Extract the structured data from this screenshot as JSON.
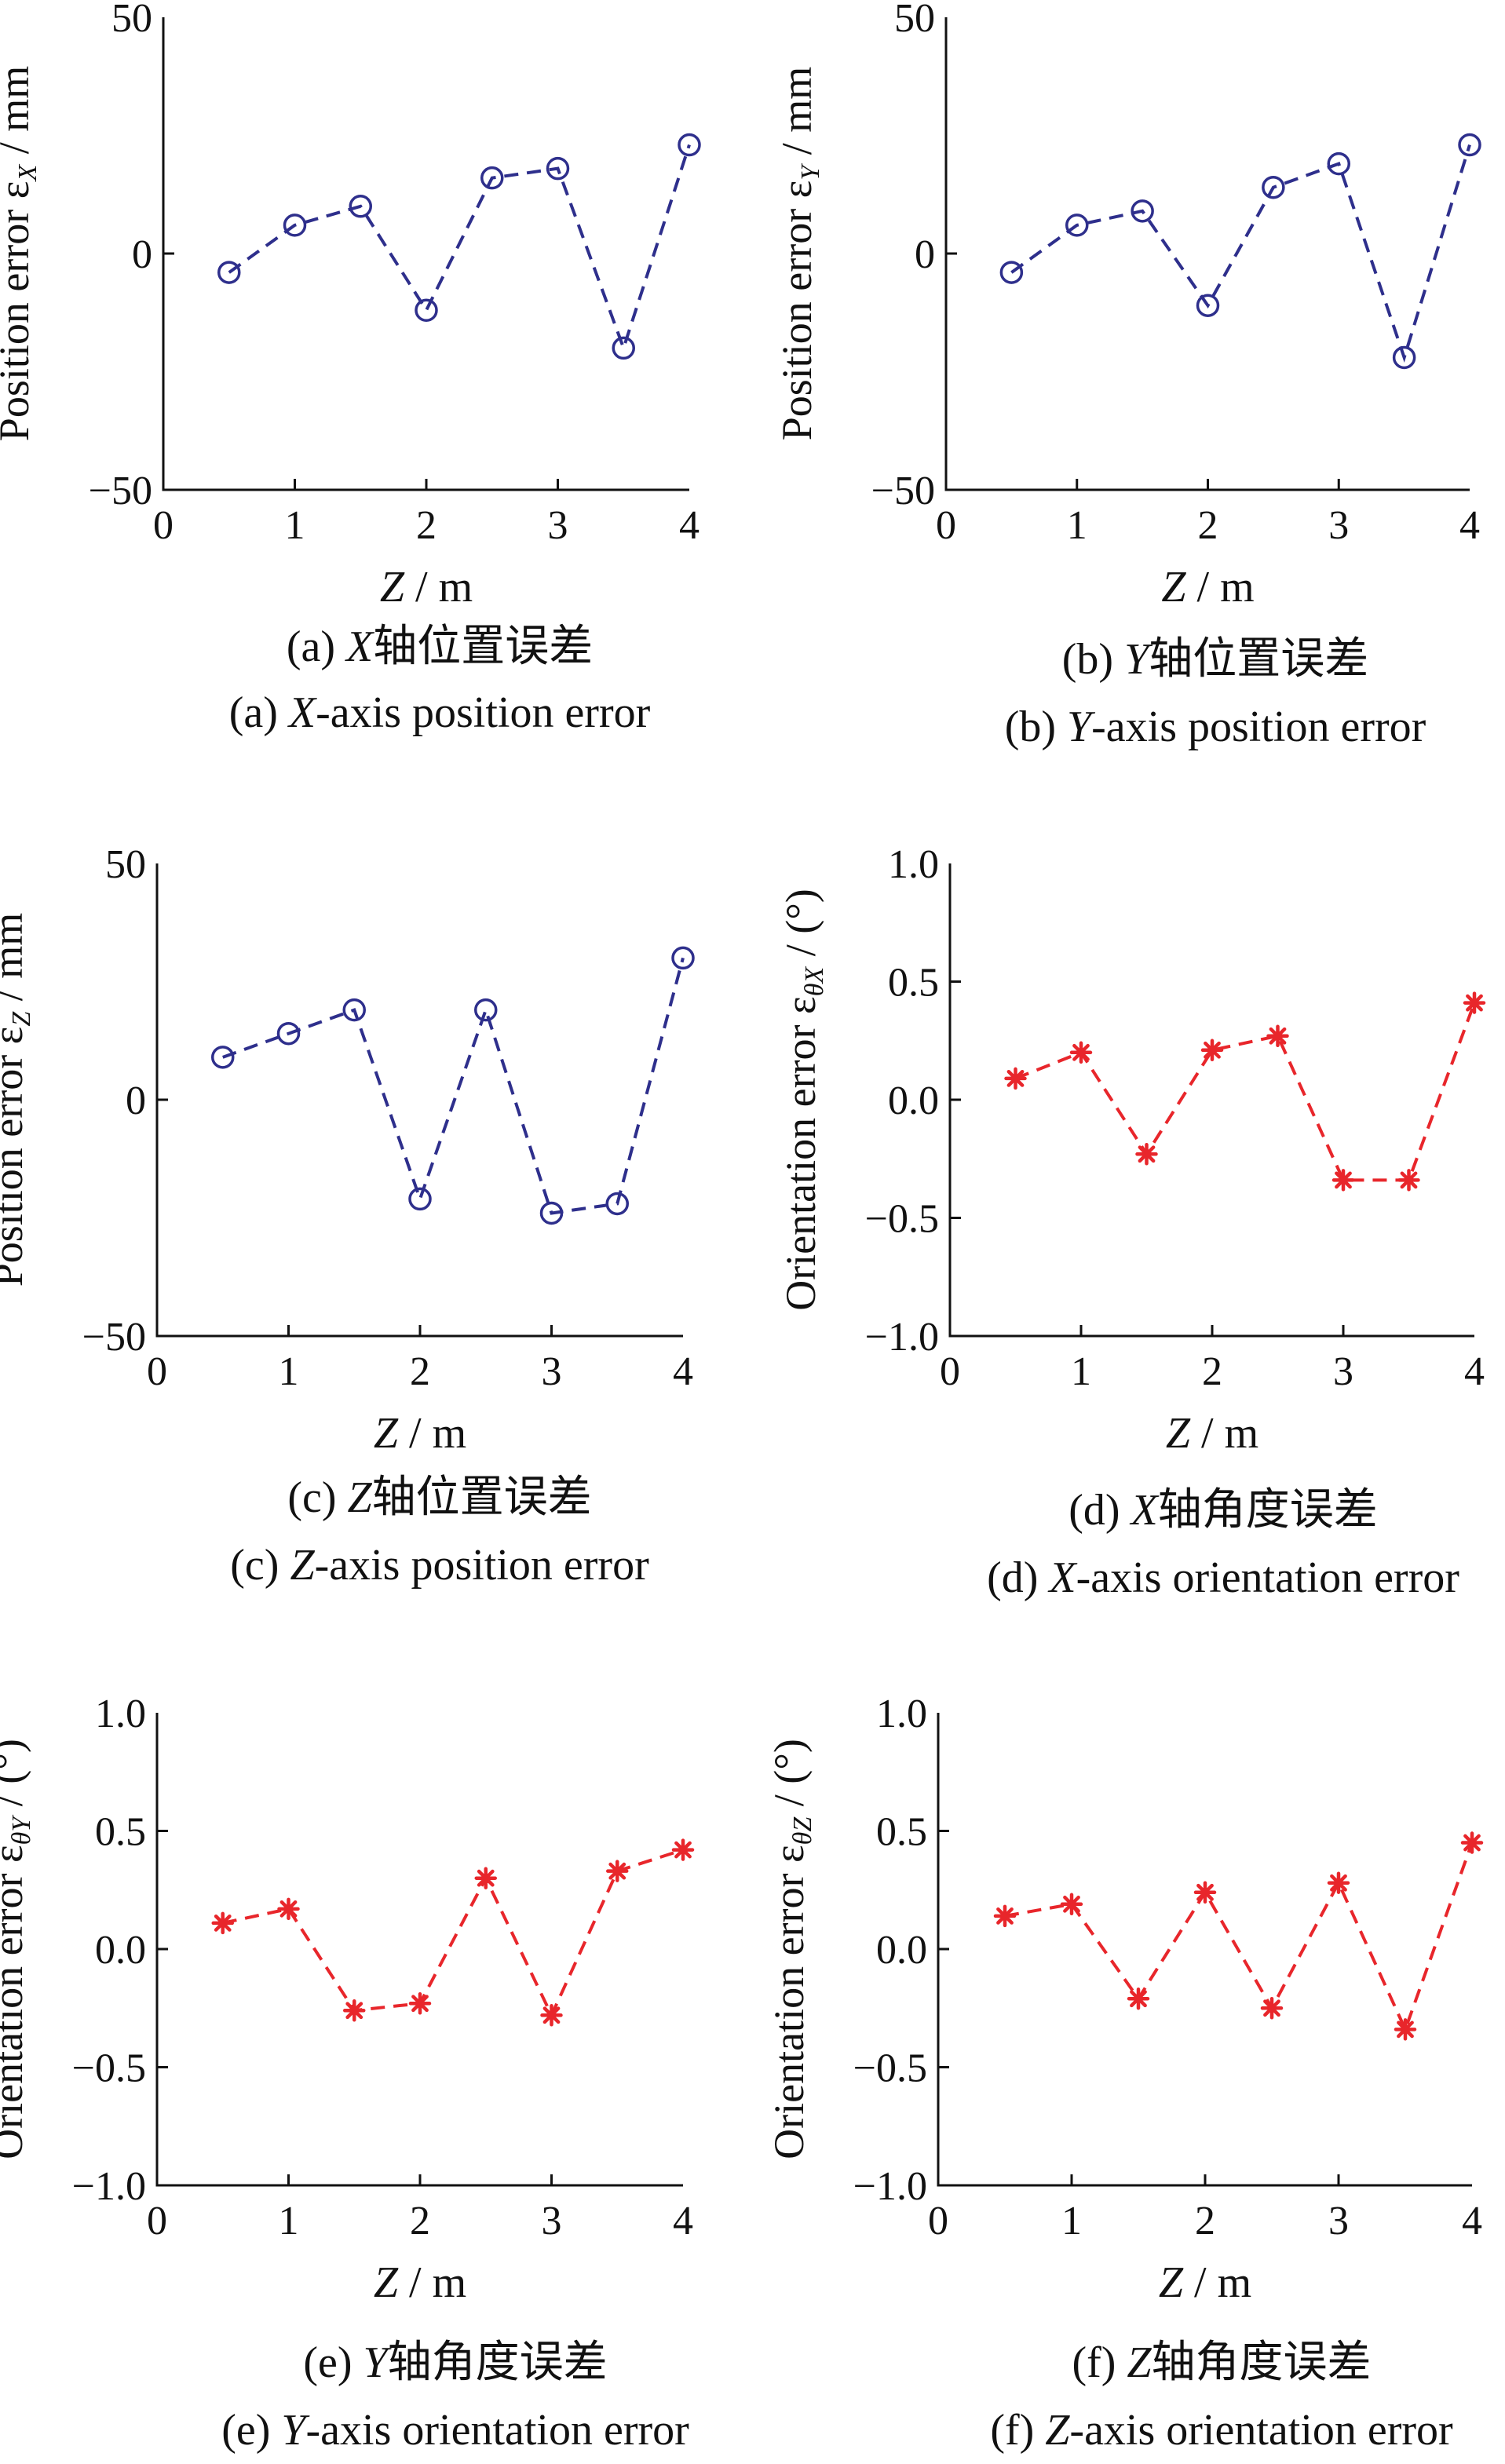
{
  "chart_data": [
    {
      "type": "line",
      "panel": "a",
      "x": [
        0.5,
        1.0,
        1.5,
        2.0,
        2.5,
        3.0,
        3.5,
        4.0
      ],
      "series": [
        {
          "values": [
            -4,
            6,
            10,
            -12,
            16,
            18,
            -20,
            23
          ],
          "color": "#2e2f8c",
          "marker": "circle",
          "line": "dashed"
        }
      ],
      "xlim": [
        0,
        4
      ],
      "ylim": [
        -50,
        50
      ],
      "xticks": [
        "0",
        "1",
        "2",
        "3",
        "4"
      ],
      "yticks": [
        "50",
        "0",
        "−50"
      ],
      "xlabel_var": "Z",
      "xlabel_unit": " / m",
      "ylabel_prefix": "Position error ε",
      "ylabel_sub": "X",
      "ylabel_suffix": " / mm",
      "caption_cn_prefix": "(a) ",
      "caption_cn_var": "X",
      "caption_cn_rest": "轴位置误差",
      "caption_en_prefix": "(a) ",
      "caption_en_var": "X",
      "caption_en_rest": "-axis position error"
    },
    {
      "type": "line",
      "panel": "b",
      "x": [
        0.5,
        1.0,
        1.5,
        2.0,
        2.5,
        3.0,
        3.5,
        4.0
      ],
      "series": [
        {
          "values": [
            -4,
            6,
            9,
            -11,
            14,
            19,
            -22,
            23
          ],
          "color": "#2e2f8c",
          "marker": "circle",
          "line": "dashed"
        }
      ],
      "xlim": [
        0,
        4
      ],
      "ylim": [
        -50,
        50
      ],
      "xticks": [
        "0",
        "1",
        "2",
        "3",
        "4"
      ],
      "yticks": [
        "50",
        "0",
        "−50"
      ],
      "xlabel_var": "Z",
      "xlabel_unit": " / m",
      "ylabel_prefix": "Position error ε",
      "ylabel_sub": "Y",
      "ylabel_suffix": " / mm",
      "caption_cn_prefix": "(b) ",
      "caption_cn_var": "Y",
      "caption_cn_rest": "轴位置误差",
      "caption_en_prefix": "(b) ",
      "caption_en_var": "Y",
      "caption_en_rest": "-axis position error"
    },
    {
      "type": "line",
      "panel": "c",
      "x": [
        0.5,
        1.0,
        1.5,
        2.0,
        2.5,
        3.0,
        3.5,
        4.0
      ],
      "series": [
        {
          "values": [
            9,
            14,
            19,
            -21,
            19,
            -24,
            -22,
            30
          ],
          "color": "#2e2f8c",
          "marker": "circle",
          "line": "dashed"
        }
      ],
      "xlim": [
        0,
        4
      ],
      "ylim": [
        -50,
        50
      ],
      "xticks": [
        "0",
        "1",
        "2",
        "3",
        "4"
      ],
      "yticks": [
        "50",
        "0",
        "−50"
      ],
      "xlabel_var": "Z",
      "xlabel_unit": " / m",
      "ylabel_prefix": "Position error ε",
      "ylabel_sub": "Z",
      "ylabel_suffix": " / mm",
      "caption_cn_prefix": "(c) ",
      "caption_cn_var": "Z",
      "caption_cn_rest": "轴位置误差",
      "caption_en_prefix": "(c) ",
      "caption_en_var": "Z",
      "caption_en_rest": "-axis position error"
    },
    {
      "type": "line",
      "panel": "d",
      "x": [
        0.5,
        1.0,
        1.5,
        2.0,
        2.5,
        3.0,
        3.5,
        4.0
      ],
      "series": [
        {
          "values": [
            0.09,
            0.2,
            -0.23,
            0.21,
            0.27,
            -0.34,
            -0.34,
            0.41
          ],
          "color": "#e8262b",
          "marker": "star",
          "line": "dashed"
        }
      ],
      "xlim": [
        0,
        4
      ],
      "ylim": [
        -1,
        1
      ],
      "xticks": [
        "0",
        "1",
        "2",
        "3",
        "4"
      ],
      "yticks": [
        "1.0",
        "0.5",
        "0.0",
        "−0.5",
        "−1.0"
      ],
      "xlabel_var": "Z",
      "xlabel_unit": " / m",
      "ylabel_prefix": "Orientation error ε",
      "ylabel_sub": "θX",
      "ylabel_suffix": " / (°)",
      "caption_cn_prefix": "(d) ",
      "caption_cn_var": "X",
      "caption_cn_rest": "轴角度误差",
      "caption_en_prefix": "(d) ",
      "caption_en_var": "X",
      "caption_en_rest": "-axis orientation error"
    },
    {
      "type": "line",
      "panel": "e",
      "x": [
        0.5,
        1.0,
        1.5,
        2.0,
        2.5,
        3.0,
        3.5,
        4.0
      ],
      "series": [
        {
          "values": [
            0.11,
            0.17,
            -0.26,
            -0.23,
            0.3,
            -0.28,
            0.33,
            0.42
          ],
          "color": "#e8262b",
          "marker": "star",
          "line": "dashed"
        }
      ],
      "xlim": [
        0,
        4
      ],
      "ylim": [
        -1,
        1
      ],
      "xticks": [
        "0",
        "1",
        "2",
        "3",
        "4"
      ],
      "yticks": [
        "1.0",
        "0.5",
        "0.0",
        "−0.5",
        "−1.0"
      ],
      "xlabel_var": "Z",
      "xlabel_unit": " / m",
      "ylabel_prefix": "Orientation error ε",
      "ylabel_sub": "θY",
      "ylabel_suffix": " / (°)",
      "caption_cn_prefix": "(e) ",
      "caption_cn_var": "Y",
      "caption_cn_rest": "轴角度误差",
      "caption_en_prefix": "(e) ",
      "caption_en_var": "Y",
      "caption_en_rest": "-axis orientation error"
    },
    {
      "type": "line",
      "panel": "f",
      "x": [
        0.5,
        1.0,
        1.5,
        2.0,
        2.5,
        3.0,
        3.5,
        4.0
      ],
      "series": [
        {
          "values": [
            0.14,
            0.19,
            -0.21,
            0.24,
            -0.25,
            0.28,
            -0.34,
            0.45
          ],
          "color": "#e8262b",
          "marker": "star",
          "line": "dashed"
        }
      ],
      "xlim": [
        0,
        4
      ],
      "ylim": [
        -1,
        1
      ],
      "xticks": [
        "0",
        "1",
        "2",
        "3",
        "4"
      ],
      "yticks": [
        "1.0",
        "0.5",
        "0.0",
        "−0.5",
        "−1.0"
      ],
      "xlabel_var": "Z",
      "xlabel_unit": " / m",
      "ylabel_prefix": "Orientation error ε",
      "ylabel_sub": "θZ",
      "ylabel_suffix": " / (°)",
      "caption_cn_prefix": "(f) ",
      "caption_cn_var": "Z",
      "caption_cn_rest": "轴角度误差",
      "caption_en_prefix": "(f) ",
      "caption_en_var": "Z",
      "caption_en_rest": "-axis orientation error"
    }
  ]
}
